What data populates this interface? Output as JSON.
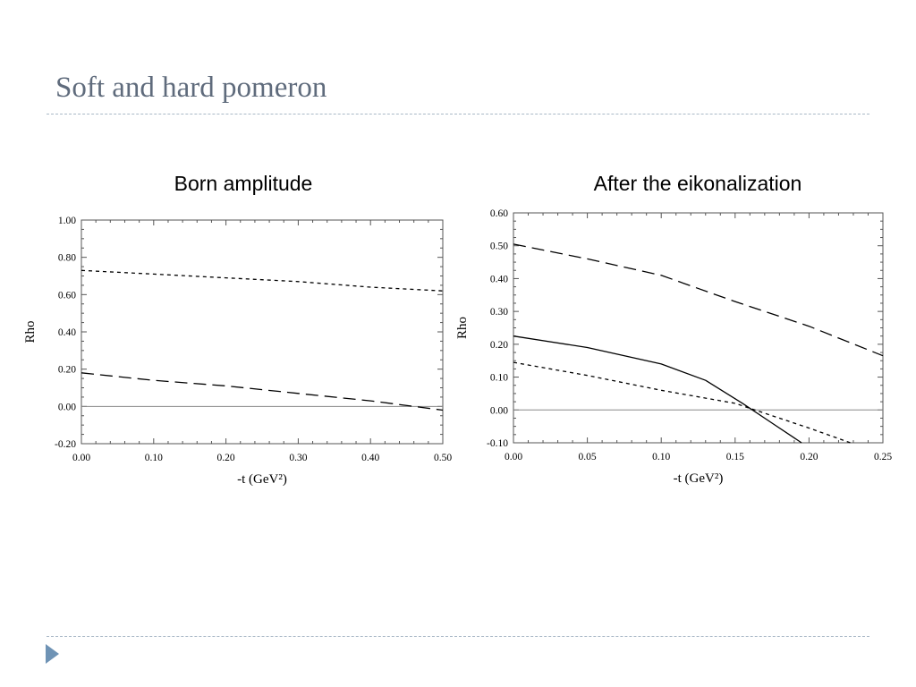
{
  "slide": {
    "title": "Soft and hard pomeron"
  },
  "footer": {
    "icon": "triangle-bullet-icon"
  },
  "colors": {
    "title": "#5f6b7c",
    "rule": "#a9b8c6",
    "bullet": "#6f93b5",
    "curves": "#000000",
    "zero_line": "#888888"
  },
  "chart_data": [
    {
      "type": "line",
      "title": "Born amplitude",
      "xlabel": "-t (GeV²)",
      "ylabel": "Rho",
      "xlim": [
        0.0,
        0.5
      ],
      "ylim": [
        -0.2,
        1.0
      ],
      "xticks": [
        "0.00",
        "0.10",
        "0.20",
        "0.30",
        "0.40",
        "0.50"
      ],
      "yticks": [
        "-0.20",
        "0.00",
        "0.20",
        "0.40",
        "0.60",
        "0.80",
        "1.00"
      ],
      "grid": false,
      "reference_line": 0.0,
      "series": [
        {
          "style": "short-dash",
          "x": [
            0.0,
            0.1,
            0.2,
            0.3,
            0.4,
            0.5
          ],
          "y": [
            0.73,
            0.71,
            0.69,
            0.67,
            0.64,
            0.62
          ]
        },
        {
          "style": "long-dash",
          "x": [
            0.0,
            0.1,
            0.2,
            0.3,
            0.4,
            0.5
          ],
          "y": [
            0.18,
            0.14,
            0.11,
            0.07,
            0.03,
            -0.02
          ]
        }
      ]
    },
    {
      "type": "line",
      "title": "After the eikonalization",
      "xlabel": "-t (GeV²)",
      "ylabel": "Rho",
      "xlim": [
        0.0,
        0.25
      ],
      "ylim": [
        -0.1,
        0.6
      ],
      "xticks": [
        "0.00",
        "0.05",
        "0.10",
        "0.15",
        "0.20",
        "0.25"
      ],
      "yticks": [
        "-0.10",
        "0.00",
        "0.10",
        "0.20",
        "0.30",
        "0.40",
        "0.50",
        "0.60"
      ],
      "grid": false,
      "reference_line": 0.0,
      "series": [
        {
          "style": "long-dash",
          "x": [
            0.0,
            0.05,
            0.1,
            0.15,
            0.2,
            0.25
          ],
          "y": [
            0.505,
            0.46,
            0.41,
            0.33,
            0.255,
            0.165
          ]
        },
        {
          "style": "solid",
          "x": [
            0.0,
            0.05,
            0.1,
            0.13,
            0.155,
            0.175,
            0.195
          ],
          "y": [
            0.225,
            0.19,
            0.14,
            0.09,
            0.02,
            -0.04,
            -0.1
          ]
        },
        {
          "style": "short-dash",
          "x": [
            0.0,
            0.05,
            0.1,
            0.15,
            0.2,
            0.228
          ],
          "y": [
            0.145,
            0.105,
            0.06,
            0.02,
            -0.055,
            -0.1
          ]
        }
      ]
    }
  ]
}
